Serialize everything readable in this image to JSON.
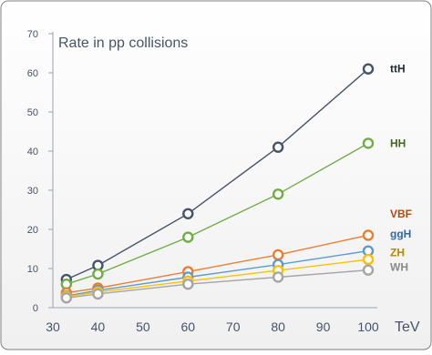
{
  "chart_data": {
    "type": "line",
    "title": "Rate in pp collisions",
    "xlabel": "",
    "ylabel": "",
    "x_unit_label": "TeV",
    "xlim": [
      30,
      100
    ],
    "ylim": [
      0,
      70
    ],
    "x_ticks": [
      30,
      40,
      50,
      60,
      70,
      80,
      90,
      100
    ],
    "y_ticks": [
      0,
      10,
      20,
      30,
      40,
      50,
      60,
      70
    ],
    "x": [
      33,
      40,
      60,
      80,
      100
    ],
    "grid": false,
    "legend": "labels at line ends (right)",
    "series": [
      {
        "name": "ttH",
        "color": "#44546a",
        "values": [
          7.2,
          10.8,
          24.0,
          41.0,
          61.0
        ]
      },
      {
        "name": "HH",
        "color": "#70ad47",
        "values": [
          6.0,
          8.6,
          18.0,
          29.0,
          42.0
        ]
      },
      {
        "name": "VBF",
        "color": "#ed7d31",
        "values": [
          3.8,
          5.0,
          9.2,
          13.5,
          18.5
        ]
      },
      {
        "name": "ggH",
        "color": "#5b9bd5",
        "values": [
          3.0,
          4.4,
          7.8,
          11.0,
          14.5
        ]
      },
      {
        "name": "ZH",
        "color": "#ffc000",
        "values": [
          2.8,
          4.0,
          6.8,
          9.5,
          12.3
        ]
      },
      {
        "name": "WH",
        "color": "#a5a5a5",
        "values": [
          2.5,
          3.5,
          6.0,
          7.8,
          9.6
        ]
      }
    ],
    "label_colors": {
      "ttH": "#1f2a3a",
      "HH": "#3d6b1f",
      "VBF": "#b04a10",
      "ggH": "#2e6aa8",
      "ZH": "#b8860b",
      "WH": "#8a8a8a"
    }
  }
}
